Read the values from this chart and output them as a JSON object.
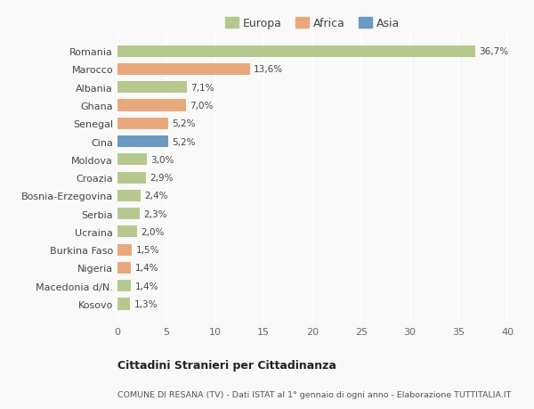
{
  "countries": [
    "Kosovo",
    "Macedonia d/N.",
    "Nigeria",
    "Burkina Faso",
    "Ucraina",
    "Serbia",
    "Bosnia-Erzegovina",
    "Croazia",
    "Moldova",
    "Cina",
    "Senegal",
    "Ghana",
    "Albania",
    "Marocco",
    "Romania"
  ],
  "values": [
    1.3,
    1.4,
    1.4,
    1.5,
    2.0,
    2.3,
    2.4,
    2.9,
    3.0,
    5.2,
    5.2,
    7.0,
    7.1,
    13.6,
    36.7
  ],
  "labels": [
    "1,3%",
    "1,4%",
    "1,4%",
    "1,5%",
    "2,0%",
    "2,3%",
    "2,4%",
    "2,9%",
    "3,0%",
    "5,2%",
    "5,2%",
    "7,0%",
    "7,1%",
    "13,6%",
    "36,7%"
  ],
  "continents": [
    "Europa",
    "Europa",
    "Africa",
    "Africa",
    "Europa",
    "Europa",
    "Europa",
    "Europa",
    "Europa",
    "Asia",
    "Africa",
    "Africa",
    "Europa",
    "Africa",
    "Europa"
  ],
  "colors": {
    "Europa": "#b5c98e",
    "Africa": "#e8a87c",
    "Asia": "#6b9bc3"
  },
  "title1": "Cittadini Stranieri per Cittadinanza",
  "title2": "COMUNE DI RESANA (TV) - Dati ISTAT al 1° gennaio di ogni anno - Elaborazione TUTTITALIA.IT",
  "xlim": [
    0,
    40
  ],
  "xticks": [
    0,
    5,
    10,
    15,
    20,
    25,
    30,
    35,
    40
  ],
  "background_color": "#f9f9f9",
  "grid_color": "#ffffff",
  "bar_height": 0.65
}
